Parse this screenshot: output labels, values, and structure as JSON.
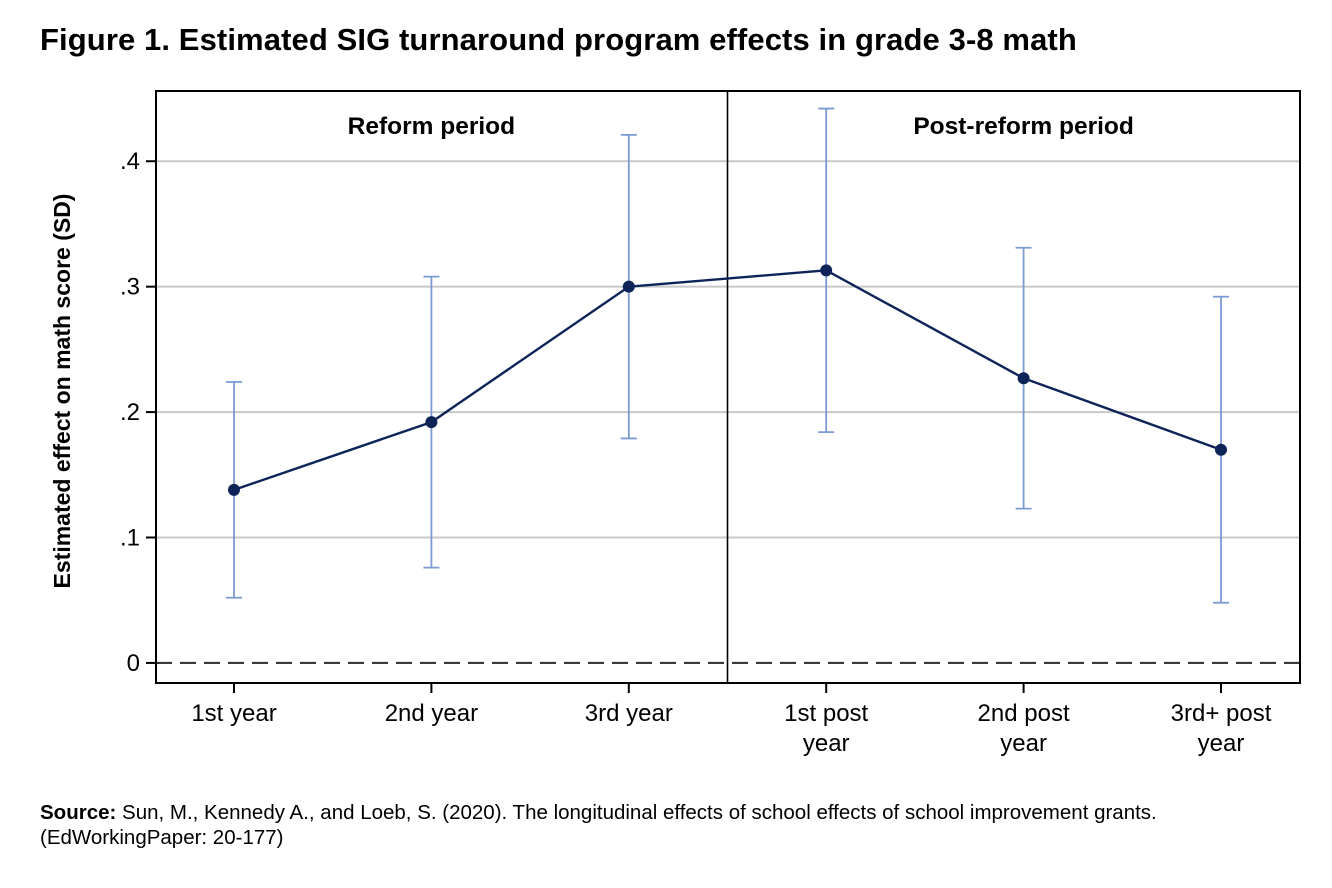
{
  "title": "Figure 1. Estimated SIG turnaround program effects in grade 3-8 math",
  "chart_data": {
    "type": "line",
    "title": "Figure 1. Estimated SIG turnaround program effects in grade 3-8 math",
    "xlabel": "",
    "ylabel": "Estimated effect on math score (SD)",
    "ylim": [
      -0.016,
      0.456
    ],
    "yticks": [
      0,
      0.1,
      0.2,
      0.3,
      0.4
    ],
    "ytick_labels": [
      "0",
      ".1",
      ".2",
      ".3",
      ".4"
    ],
    "grid": true,
    "reference_line": {
      "y": 0,
      "style": "dashed"
    },
    "categories": [
      [
        "1st year"
      ],
      [
        "2nd year"
      ],
      [
        "3rd year"
      ],
      [
        "1st post",
        "year"
      ],
      [
        "2nd post",
        "year"
      ],
      [
        "3rd+ post",
        "year"
      ]
    ],
    "series": [
      {
        "name": "Estimated effect",
        "values": [
          0.138,
          0.192,
          0.3,
          0.313,
          0.227,
          0.17
        ],
        "ci_lower": [
          0.052,
          0.076,
          0.179,
          0.184,
          0.123,
          0.048
        ],
        "ci_upper": [
          0.224,
          0.308,
          0.421,
          0.442,
          0.331,
          0.292
        ],
        "color": "#0d2458",
        "ci_color": "#7c9ad4"
      }
    ],
    "periods": [
      {
        "label": "Reform period",
        "categories": [
          0,
          1,
          2
        ]
      },
      {
        "label": "Post-reform period",
        "categories": [
          3,
          4,
          5
        ]
      }
    ]
  },
  "source": {
    "label": "Source:",
    "text": " Sun, M., Kennedy A., and Loeb, S. (2020). The longitudinal effects of school effects of school improvement grants. (EdWorkingPaper: 20-177)"
  }
}
